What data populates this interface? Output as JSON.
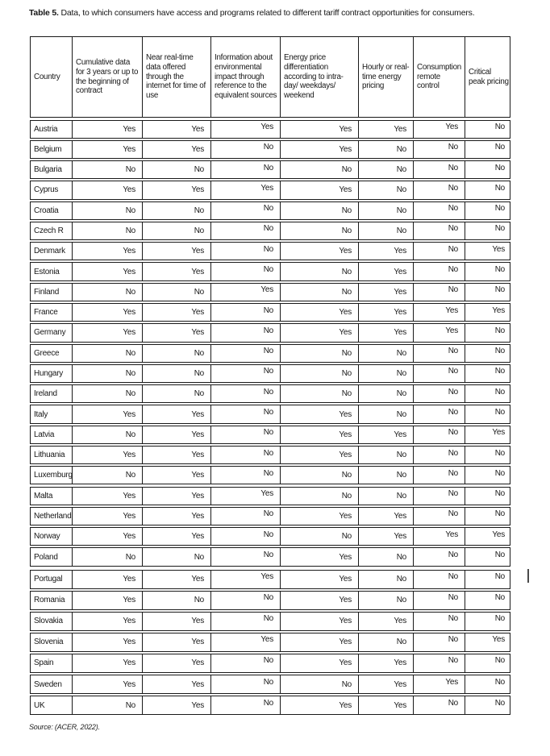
{
  "page": {
    "title_bold": "Table 5.",
    "title_rest": " Data, to which consumers have access and programs related to different tariff contract opportunities for consumers.",
    "source": "Source: (ACER, 2022)."
  },
  "table": {
    "columns": [
      "Country",
      "Cumulative data for 3 years or up to the beginning of contract",
      "Near real-time data offered through the internet for time of use",
      "Information about environmental impact through reference to the equivalent sources",
      "Energy price differentiation according to intra-day/ weekdays/ weekend",
      "Hourly or real-time energy pricing",
      "Consumption remote control",
      "Critical peak pricing"
    ],
    "sections": [
      {
        "rows": [
          {
            "country": "Austria",
            "values": [
              "Yes",
              "Yes",
              "Yes",
              "Yes",
              "Yes",
              "Yes",
              "No"
            ]
          },
          {
            "country": "Belgium",
            "values": [
              "Yes",
              "Yes",
              "No",
              "Yes",
              "No",
              "No",
              "No"
            ]
          },
          {
            "country": "Bulgaria",
            "values": [
              "No",
              "No",
              "No",
              "No",
              "No",
              "No",
              "No"
            ]
          },
          {
            "country": "Cyprus",
            "values": [
              "Yes",
              "Yes",
              "Yes",
              "Yes",
              "No",
              "No",
              "No"
            ]
          },
          {
            "country": "Croatia",
            "values": [
              "No",
              "No",
              "No",
              "No",
              "No",
              "No",
              "No"
            ]
          },
          {
            "country": "Czech R",
            "values": [
              "No",
              "No",
              "No",
              "No",
              "No",
              "No",
              "No"
            ]
          },
          {
            "country": "Denmark",
            "values": [
              "Yes",
              "Yes",
              "No",
              "Yes",
              "Yes",
              "No",
              "Yes"
            ]
          },
          {
            "country": "Estonia",
            "values": [
              "Yes",
              "Yes",
              "No",
              "No",
              "Yes",
              "No",
              "No"
            ]
          },
          {
            "country": "Finland",
            "values": [
              "No",
              "No",
              "Yes",
              "No",
              "Yes",
              "No",
              "No"
            ]
          },
          {
            "country": "France",
            "values": [
              "Yes",
              "Yes",
              "No",
              "Yes",
              "Yes",
              "Yes",
              "Yes"
            ]
          },
          {
            "country": "Germany",
            "values": [
              "Yes",
              "Yes",
              "No",
              "Yes",
              "Yes",
              "Yes",
              "No"
            ]
          },
          {
            "country": "Greece",
            "values": [
              "No",
              "No",
              "No",
              "No",
              "No",
              "No",
              "No"
            ]
          },
          {
            "country": "Hungary",
            "values": [
              "No",
              "No",
              "No",
              "No",
              "No",
              "No",
              "No"
            ]
          },
          {
            "country": "Ireland",
            "values": [
              "No",
              "No",
              "No",
              "No",
              "No",
              "No",
              "No"
            ]
          },
          {
            "country": "Italy",
            "values": [
              "Yes",
              "Yes",
              "No",
              "Yes",
              "No",
              "No",
              "No"
            ]
          },
          {
            "country": "Latvia",
            "values": [
              "No",
              "Yes",
              "No",
              "Yes",
              "Yes",
              "No",
              "Yes"
            ]
          },
          {
            "country": "Lithuania",
            "values": [
              "Yes",
              "Yes",
              "No",
              "Yes",
              "No",
              "No",
              "No"
            ]
          },
          {
            "country": "Luxemburg",
            "values": [
              "No",
              "Yes",
              "No",
              "No",
              "No",
              "No",
              "No"
            ]
          },
          {
            "country": "Malta",
            "values": [
              "Yes",
              "Yes",
              "Yes",
              "No",
              "No",
              "No",
              "No"
            ]
          },
          {
            "country": "Netherlands",
            "values": [
              "Yes",
              "Yes",
              "No",
              "Yes",
              "Yes",
              "No",
              "No"
            ]
          },
          {
            "country": "Norway",
            "values": [
              "Yes",
              "Yes",
              "No",
              "No",
              "Yes",
              "Yes",
              "Yes"
            ]
          },
          {
            "country": "Poland",
            "values": [
              "No",
              "No",
              "No",
              "Yes",
              "No",
              "No",
              "No"
            ]
          }
        ]
      },
      {
        "rows": [
          {
            "country": "Portugal",
            "values": [
              "Yes",
              "Yes",
              "Yes",
              "Yes",
              "No",
              "No",
              "No"
            ]
          },
          {
            "country": "Romania",
            "values": [
              "Yes",
              "No",
              "No",
              "Yes",
              "No",
              "No",
              "No"
            ]
          },
          {
            "country": "Slovakia",
            "values": [
              "Yes",
              "Yes",
              "No",
              "Yes",
              "Yes",
              "No",
              "No"
            ]
          },
          {
            "country": "Slovenia",
            "values": [
              "Yes",
              "Yes",
              "Yes",
              "Yes",
              "No",
              "No",
              "Yes"
            ]
          },
          {
            "country": "Spain",
            "values": [
              "Yes",
              "Yes",
              "No",
              "Yes",
              "Yes",
              "No",
              "No"
            ]
          },
          {
            "country": "Sweden",
            "values": [
              "Yes",
              "Yes",
              "No",
              "No",
              "Yes",
              "Yes",
              "No"
            ]
          },
          {
            "country": "UK",
            "values": [
              "No",
              "Yes",
              "No",
              "Yes",
              "Yes",
              "No",
              "No"
            ]
          }
        ]
      }
    ]
  }
}
